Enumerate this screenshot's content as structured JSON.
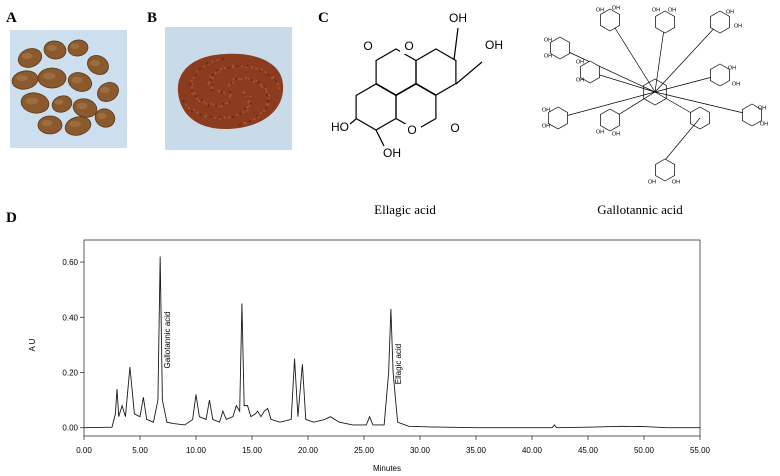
{
  "panels": {
    "a": "A",
    "b": "B",
    "c": "C",
    "d": "D"
  },
  "structures": {
    "ellagic_acid": {
      "name": "Ellagic acid",
      "atoms": [
        "O",
        "O",
        "OH",
        "OH",
        "HO",
        "OH",
        "O",
        "O"
      ]
    },
    "gallotannic_acid": {
      "name": "Gallotannic acid",
      "atoms": [
        "OH",
        "OH",
        "OH",
        "OH",
        "OH",
        "OH",
        "OH",
        "OH",
        "OH",
        "OH",
        "OH",
        "OH",
        "OH",
        "OH",
        "OH",
        "OH",
        "OH",
        "OH",
        "OH",
        "OH"
      ]
    }
  },
  "chart_data": {
    "type": "line",
    "x_label": "Minutes",
    "y_label": "A U",
    "annotations": [
      "Gallotannic acid",
      "Ellagic acid"
    ],
    "color": "#1a1a1a",
    "x": [
      0,
      2.5,
      2.8,
      2.95,
      3.1,
      3.4,
      3.7,
      4.1,
      4.5,
      5.0,
      5.3,
      5.6,
      6.2,
      6.6,
      6.8,
      7.0,
      7.4,
      8.0,
      9.0,
      9.7,
      10.0,
      10.3,
      10.9,
      11.2,
      11.5,
      12.1,
      12.4,
      12.7,
      13.3,
      13.6,
      13.9,
      14.1,
      14.3,
      14.6,
      14.9,
      15.3,
      15.5,
      15.8,
      16.1,
      16.4,
      16.7,
      17.5,
      18.5,
      18.8,
      19.1,
      19.5,
      19.8,
      20.5,
      21.5,
      22.0,
      22.8,
      24.0,
      25.2,
      25.5,
      25.8,
      26.8,
      27.2,
      27.4,
      27.6,
      28.0,
      29.0,
      31.0,
      35.0,
      40.0,
      41.8,
      42.0,
      42.2,
      45.0,
      48.0,
      50.0,
      52.0,
      55.0
    ],
    "values": [
      0,
      0.002,
      0.05,
      0.14,
      0.04,
      0.08,
      0.04,
      0.22,
      0.05,
      0.04,
      0.11,
      0.03,
      0.02,
      0.1,
      0.62,
      0.1,
      0.02,
      0.015,
      0.01,
      0.03,
      0.12,
      0.04,
      0.03,
      0.1,
      0.03,
      0.02,
      0.06,
      0.03,
      0.04,
      0.08,
      0.06,
      0.45,
      0.08,
      0.08,
      0.04,
      0.05,
      0.06,
      0.04,
      0.06,
      0.07,
      0.03,
      0.02,
      0.03,
      0.25,
      0.04,
      0.23,
      0.03,
      0.02,
      0.03,
      0.04,
      0.02,
      0.01,
      0.01,
      0.04,
      0.01,
      0.01,
      0.2,
      0.43,
      0.2,
      0.02,
      0.005,
      0.003,
      0,
      0,
      0,
      0.01,
      0,
      0.002,
      0.005,
      0.004,
      0,
      0
    ],
    "xlim": [
      0,
      55
    ],
    "ylim": [
      -0.03,
      0.68
    ],
    "xticks": [
      {
        "value": 0,
        "label": "0.00"
      },
      {
        "value": 5,
        "label": "5.00"
      },
      {
        "value": 10,
        "label": "10.00"
      },
      {
        "value": 15,
        "label": "15.00"
      },
      {
        "value": 20,
        "label": "20.00"
      },
      {
        "value": 25,
        "label": "25.00"
      },
      {
        "value": 30,
        "label": "30.00"
      },
      {
        "value": 35,
        "label": "35.00"
      },
      {
        "value": 40,
        "label": "40.00"
      },
      {
        "value": 45,
        "label": "45.00"
      },
      {
        "value": 50,
        "label": "50.00"
      },
      {
        "value": 55,
        "label": "55.00"
      }
    ],
    "yticks": [
      {
        "value": 0,
        "label": "0.00"
      },
      {
        "value": 0.2,
        "label": "0.20"
      },
      {
        "value": 0.4,
        "label": "0.40"
      },
      {
        "value": 0.6,
        "label": "0.60"
      }
    ]
  }
}
